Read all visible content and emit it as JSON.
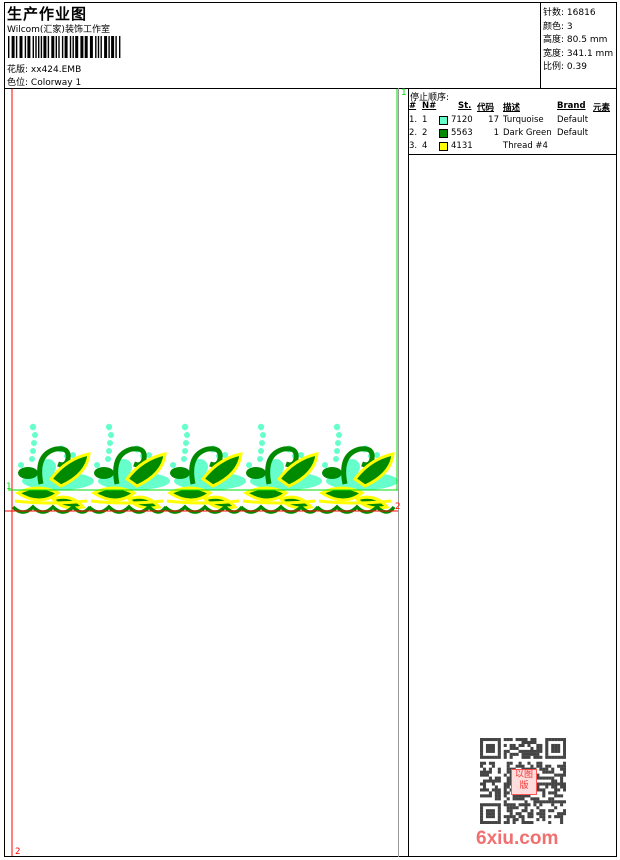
{
  "header": {
    "title": "生产作业图",
    "company": "Wilcom(汇家)装饰工作室",
    "design_label": "花版:",
    "design_value": "xx424.EMB",
    "colorway_label": "色位:",
    "colorway_value": "Colorway 1"
  },
  "stats": [
    {
      "label": "针数:",
      "value": "16816"
    },
    {
      "label": "颜色:",
      "value": "3"
    },
    {
      "label": "高度:",
      "value": "80.5 mm"
    },
    {
      "label": "宽度:",
      "value": "341.1 mm"
    },
    {
      "label": "比例:",
      "value": "0.39"
    }
  ],
  "stop_sequence": {
    "marker": "1",
    "title": "停止顺序:",
    "columns": [
      "#",
      "N#",
      "St.",
      "代码",
      "描述",
      "Brand",
      "元素"
    ],
    "rows": [
      {
        "index": "1.",
        "n": "1",
        "color": "#66ffcc",
        "st": "7120",
        "code": "17",
        "desc": "Turquoise",
        "brand": "Default"
      },
      {
        "index": "2.",
        "n": "2",
        "color": "#008a00",
        "st": "5563",
        "code": "1",
        "desc": "Dark Green",
        "brand": "Default"
      },
      {
        "index": "3.",
        "n": "4",
        "color": "#ffff00",
        "st": "4131",
        "code": "",
        "desc": "Thread #4",
        "brand": ""
      }
    ]
  },
  "design_markers": {
    "start": "1",
    "end": "2",
    "start_color": "#00dd00",
    "end_color": "#ff0000"
  },
  "watermark": {
    "text": "6xiu.com",
    "seal": "以图版"
  },
  "colors": {
    "turquoise": "#66ffcc",
    "dark_green": "#008a00",
    "yellow": "#ffff00"
  }
}
